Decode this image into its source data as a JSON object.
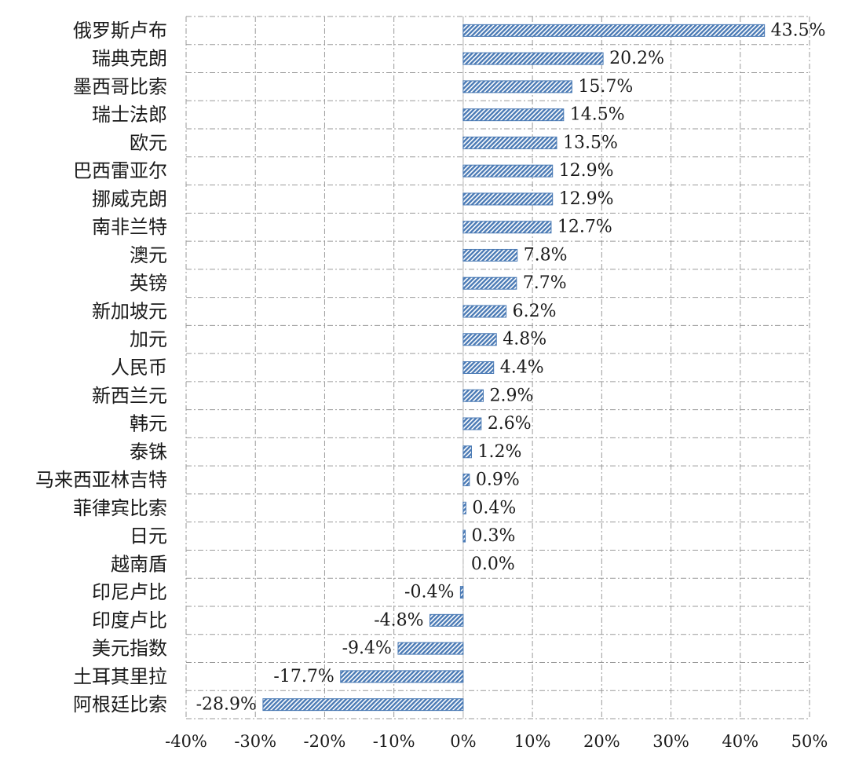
{
  "chart_data": {
    "type": "bar",
    "orientation": "horizontal",
    "categories": [
      "俄罗斯卢布",
      "瑞典克朗",
      "墨西哥比索",
      "瑞士法郎",
      "欧元",
      "巴西雷亚尔",
      "挪威克朗",
      "南非兰特",
      "澳元",
      "英镑",
      "新加坡元",
      "加元",
      "人民币",
      "新西兰元",
      "韩元",
      "泰铢",
      "马来西亚林吉特",
      "菲律宾比索",
      "日元",
      "越南盾",
      "印尼卢比",
      "印度卢比",
      "美元指数",
      "土耳其里拉",
      "阿根廷比索"
    ],
    "values": [
      43.5,
      20.2,
      15.7,
      14.5,
      13.5,
      12.9,
      12.9,
      12.7,
      7.8,
      7.7,
      6.2,
      4.8,
      4.4,
      2.9,
      2.6,
      1.2,
      0.9,
      0.4,
      0.3,
      0.0,
      -0.4,
      -4.8,
      -9.4,
      -17.7,
      -28.9
    ],
    "value_labels": [
      "43.5%",
      "20.2%",
      "15.7%",
      "14.5%",
      "13.5%",
      "12.9%",
      "12.9%",
      "12.7%",
      "7.8%",
      "7.7%",
      "6.2%",
      "4.8%",
      "4.4%",
      "2.9%",
      "2.6%",
      "1.2%",
      "0.9%",
      "0.4%",
      "0.3%",
      "0.0%",
      "-0.4%",
      "-4.8%",
      "-9.4%",
      "-17.7%",
      "-28.9%"
    ],
    "xlim": [
      -40,
      50
    ],
    "xticks": [
      -40,
      -30,
      -20,
      -10,
      0,
      10,
      20,
      30,
      40,
      50
    ],
    "xtick_labels": [
      "-40%",
      "-30%",
      "-20%",
      "-10%",
      "0%",
      "10%",
      "20%",
      "30%",
      "40%",
      "50%"
    ],
    "unit": "%",
    "grid": true,
    "bar_color": "#4a7ab5",
    "title": "",
    "xlabel": "",
    "ylabel": ""
  }
}
